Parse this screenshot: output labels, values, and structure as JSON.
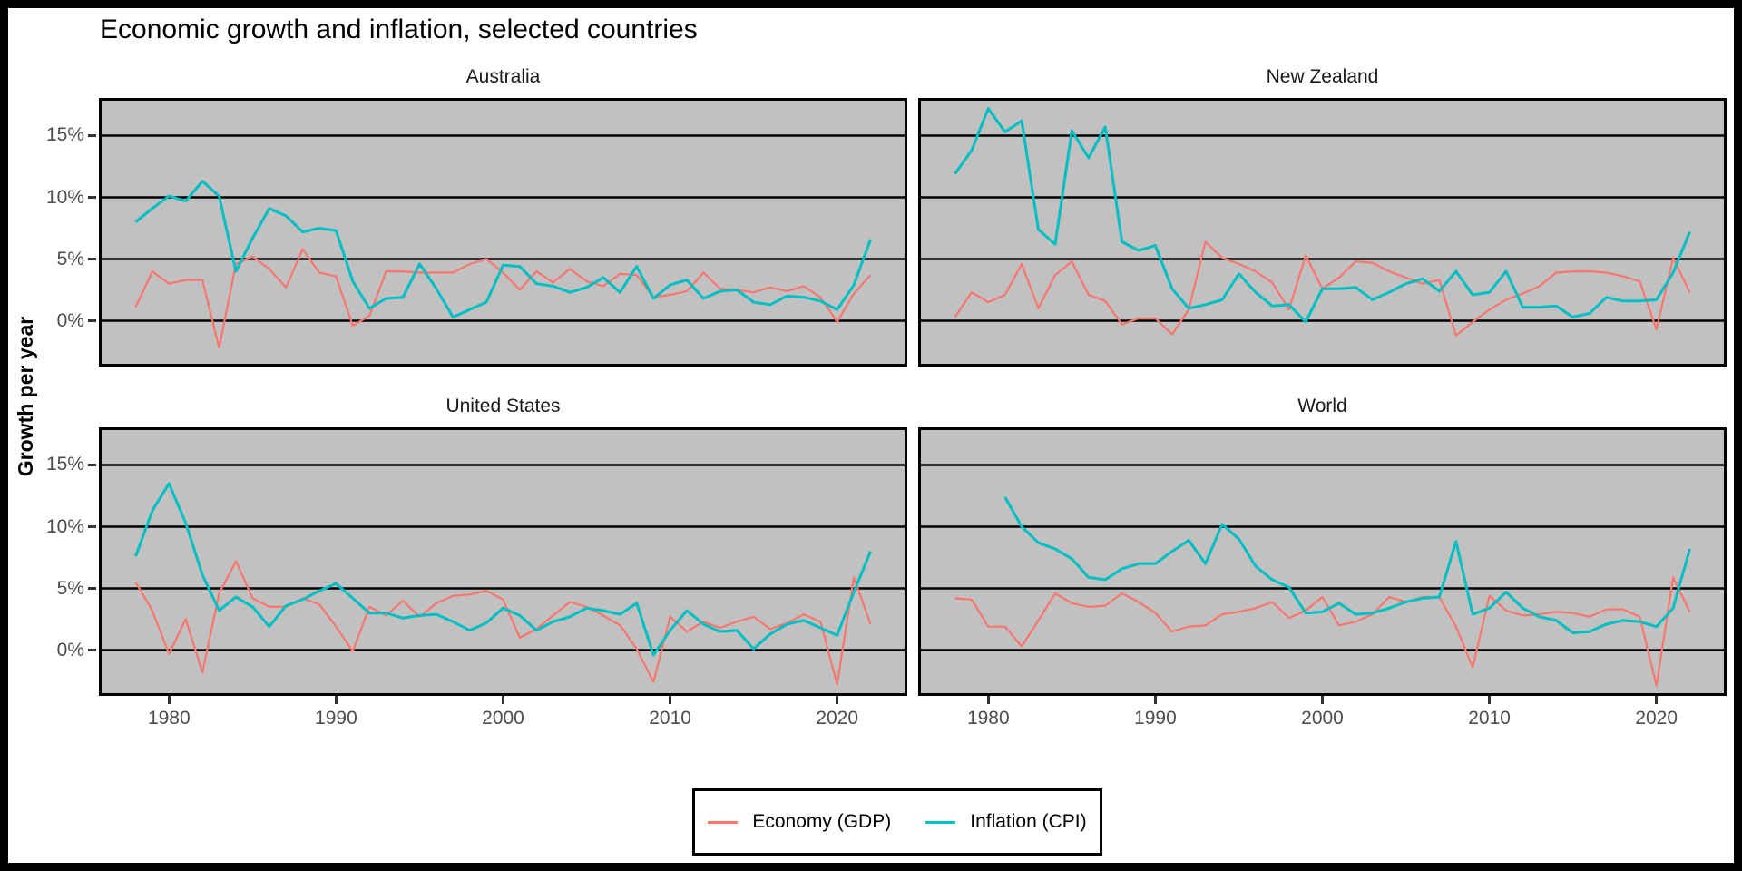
{
  "title": "Economic growth and inflation, selected countries",
  "y_axis_title": "Growth per year",
  "legend": {
    "position": "bottom",
    "items": [
      {
        "label": "Economy (GDP)",
        "color": "#F8766D"
      },
      {
        "label": "Inflation (CPI)",
        "color": "#00BFC4"
      }
    ]
  },
  "colors": {
    "economy_line": "#F8766D",
    "inflation_line": "#00BFC4",
    "panel_background": "#C1C1C1",
    "gridline": "#000000",
    "panel_border": "#000000",
    "axis_text": "#4d4d4d",
    "tick_mark": "#333333",
    "outer_frame": "#000000",
    "page_background": "#ffffff"
  },
  "chart_data": {
    "type": "line",
    "title": "Economic growth and inflation, selected countries",
    "xlabel": "",
    "ylabel": "Growth per year",
    "grid": "horizontal black gridlines on grey panels",
    "legend_position": "bottom center, boxed",
    "xlim": [
      1975.8,
      2024.2
    ],
    "ylim": [
      -3.71,
      18.05
    ],
    "x_ticks": [
      "1980",
      "1990",
      "2000",
      "2010",
      "2020"
    ],
    "x_tick_values": [
      1980,
      1990,
      2000,
      2010,
      2020
    ],
    "y_ticks": [
      "15%",
      "10%",
      "5%",
      "0%"
    ],
    "y_tick_values": [
      15,
      10,
      5,
      0
    ],
    "x": [
      1978,
      1979,
      1980,
      1981,
      1982,
      1983,
      1984,
      1985,
      1986,
      1987,
      1988,
      1989,
      1990,
      1991,
      1992,
      1993,
      1994,
      1995,
      1996,
      1997,
      1998,
      1999,
      2000,
      2001,
      2002,
      2003,
      2004,
      2005,
      2006,
      2007,
      2008,
      2009,
      2010,
      2011,
      2012,
      2013,
      2014,
      2015,
      2016,
      2017,
      2018,
      2019,
      2020,
      2021,
      2022
    ],
    "facets": [
      {
        "name": "Australia",
        "series": [
          {
            "name": "Economy (GDP)",
            "values": [
              1.1,
              4.0,
              3.0,
              3.3,
              3.3,
              -2.2,
              4.6,
              5.2,
              4.2,
              2.7,
              5.8,
              3.9,
              3.6,
              -0.4,
              0.4,
              4.0,
              4.0,
              3.9,
              3.9,
              3.9,
              4.6,
              5.0,
              3.9,
              2.5,
              4.0,
              3.1,
              4.2,
              3.2,
              2.8,
              3.8,
              3.7,
              1.9,
              2.1,
              2.4,
              3.9,
              2.6,
              2.5,
              2.3,
              2.7,
              2.4,
              2.8,
              1.9,
              -0.1,
              2.2,
              3.7
            ]
          },
          {
            "name": "Inflation (CPI)",
            "values": [
              8.0,
              9.1,
              10.1,
              9.7,
              11.3,
              10.1,
              4.0,
              6.7,
              9.1,
              8.5,
              7.2,
              7.5,
              7.3,
              3.2,
              1.0,
              1.8,
              1.9,
              4.6,
              2.6,
              0.3,
              0.9,
              1.5,
              4.5,
              4.4,
              3.0,
              2.8,
              2.3,
              2.7,
              3.5,
              2.3,
              4.4,
              1.8,
              2.9,
              3.3,
              1.8,
              2.4,
              2.5,
              1.5,
              1.3,
              2.0,
              1.9,
              1.6,
              0.9,
              2.9,
              6.6
            ]
          }
        ]
      },
      {
        "name": "New Zealand",
        "series": [
          {
            "name": "Economy (GDP)",
            "values": [
              0.3,
              2.3,
              1.5,
              2.1,
              4.6,
              1.0,
              3.7,
              4.8,
              2.1,
              1.6,
              -0.3,
              0.2,
              0.2,
              -1.1,
              0.9,
              6.4,
              5.1,
              4.6,
              4.0,
              3.1,
              0.9,
              5.3,
              2.6,
              3.5,
              4.8,
              4.7,
              4.0,
              3.5,
              3.0,
              3.3,
              -1.2,
              -0.1,
              0.9,
              1.7,
              2.2,
              2.8,
              3.9,
              4.0,
              4.0,
              3.9,
              3.6,
              3.2,
              -0.7,
              5.1,
              2.3
            ]
          },
          {
            "name": "Inflation (CPI)",
            "values": [
              11.9,
              13.8,
              17.2,
              15.3,
              16.2,
              7.4,
              6.2,
              15.4,
              13.2,
              15.7,
              6.4,
              5.7,
              6.1,
              2.6,
              1.0,
              1.3,
              1.7,
              3.8,
              2.3,
              1.2,
              1.3,
              -0.1,
              2.6,
              2.6,
              2.7,
              1.7,
              2.3,
              3.0,
              3.4,
              2.4,
              4.0,
              2.1,
              2.3,
              4.0,
              1.1,
              1.1,
              1.2,
              0.3,
              0.6,
              1.9,
              1.6,
              1.6,
              1.7,
              3.9,
              7.2
            ]
          }
        ]
      },
      {
        "name": "United States",
        "series": [
          {
            "name": "Economy (GDP)",
            "values": [
              5.5,
              3.2,
              -0.3,
              2.5,
              -1.8,
              4.6,
              7.2,
              4.2,
              3.5,
              3.5,
              4.2,
              3.7,
              1.9,
              -0.1,
              3.5,
              2.8,
              4.0,
              2.7,
              3.8,
              4.4,
              4.5,
              4.8,
              4.1,
              1.0,
              1.7,
              2.8,
              3.9,
              3.5,
              2.8,
              2.0,
              0.1,
              -2.6,
              2.7,
              1.5,
              2.3,
              1.8,
              2.3,
              2.7,
              1.7,
              2.2,
              2.9,
              2.3,
              -2.8,
              5.9,
              2.1
            ]
          },
          {
            "name": "Inflation (CPI)",
            "values": [
              7.6,
              11.3,
              13.5,
              10.3,
              6.1,
              3.2,
              4.3,
              3.5,
              1.9,
              3.6,
              4.1,
              4.8,
              5.4,
              4.2,
              3.0,
              3.0,
              2.6,
              2.8,
              2.9,
              2.3,
              1.6,
              2.2,
              3.4,
              2.8,
              1.6,
              2.3,
              2.7,
              3.4,
              3.2,
              2.9,
              3.8,
              -0.4,
              1.6,
              3.2,
              2.1,
              1.5,
              1.6,
              0.1,
              1.3,
              2.1,
              2.4,
              1.8,
              1.2,
              4.7,
              8.0
            ]
          }
        ]
      },
      {
        "name": "World",
        "series": [
          {
            "name": "Economy (GDP)",
            "values": [
              4.2,
              4.1,
              1.9,
              1.9,
              0.3,
              2.4,
              4.6,
              3.8,
              3.5,
              3.6,
              4.6,
              3.9,
              3.0,
              1.5,
              1.9,
              2.0,
              2.9,
              3.1,
              3.4,
              3.9,
              2.6,
              3.2,
              4.3,
              2.0,
              2.3,
              2.9,
              4.3,
              3.9,
              4.3,
              4.3,
              1.9,
              -1.4,
              4.4,
              3.2,
              2.8,
              2.9,
              3.1,
              3.0,
              2.7,
              3.3,
              3.3,
              2.7,
              -2.9,
              5.9,
              3.1
            ]
          },
          {
            "name": "Inflation (CPI)",
            "values": [
              null,
              null,
              null,
              12.4,
              10.0,
              8.7,
              8.2,
              7.4,
              5.9,
              5.7,
              6.6,
              7.0,
              7.0,
              8.0,
              8.9,
              7.0,
              10.2,
              9.0,
              6.8,
              5.7,
              5.1,
              3.0,
              3.1,
              3.8,
              2.9,
              3.0,
              3.4,
              3.9,
              4.2,
              4.3,
              8.8,
              2.9,
              3.4,
              4.7,
              3.4,
              2.7,
              2.4,
              1.4,
              1.5,
              2.1,
              2.4,
              2.3,
              1.9,
              3.4,
              8.2
            ]
          }
        ]
      }
    ]
  }
}
